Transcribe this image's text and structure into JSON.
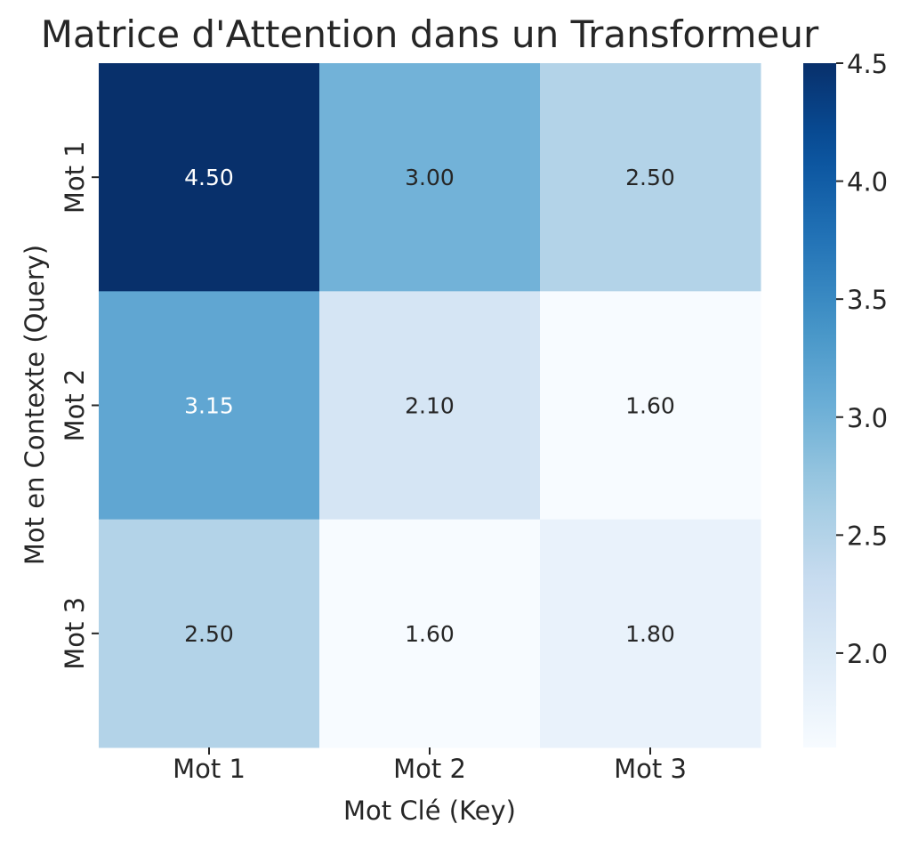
{
  "chart_data": {
    "type": "heatmap",
    "title": "Matrice d'Attention dans un Transformeur",
    "xlabel": "Mot Clé (Key)",
    "ylabel": "Mot en Contexte (Query)",
    "x_categories": [
      "Mot 1",
      "Mot 2",
      "Mot 3"
    ],
    "y_categories": [
      "Mot 1",
      "Mot 2",
      "Mot 3"
    ],
    "values": [
      [
        4.5,
        3.0,
        2.5
      ],
      [
        3.15,
        2.1,
        1.6
      ],
      [
        2.5,
        1.6,
        1.8
      ]
    ],
    "cell_labels": [
      [
        "4.50",
        "3.00",
        "2.50"
      ],
      [
        "3.15",
        "2.10",
        "1.60"
      ],
      [
        "2.50",
        "1.60",
        "1.80"
      ]
    ],
    "color_range": [
      1.6,
      4.5
    ],
    "colormap": "Blues",
    "colorbar": {
      "ticks": [
        2.0,
        2.5,
        3.0,
        3.5,
        4.0,
        4.5
      ],
      "tick_labels": [
        "2.0",
        "2.5",
        "3.0",
        "3.5",
        "4.0",
        "4.5"
      ]
    },
    "grid": false
  }
}
